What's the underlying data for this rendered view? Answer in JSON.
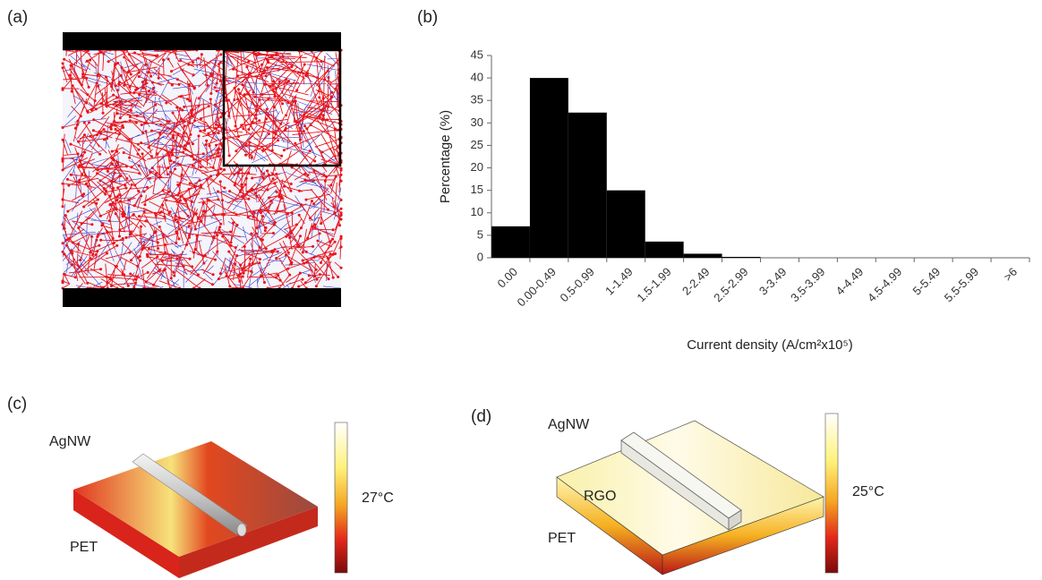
{
  "panels": {
    "a": "(a)",
    "b": "(b)",
    "c": "(c)",
    "d": "(d)"
  },
  "chart_data": {
    "type": "bar",
    "categories": [
      "0.00",
      "0.00-0.49",
      "0.5-0.99",
      "1-1.49",
      "1.5-1.99",
      "2-2.49",
      "2.5-2.99",
      "3-3.49",
      "3.5-3.99",
      "4-4.49",
      "4.5-4.99",
      "5-5.49",
      "5.5-5.99",
      ">6"
    ],
    "values": [
      7,
      40,
      32.3,
      15,
      3.6,
      0.9,
      0.2,
      0,
      0,
      0,
      0,
      0,
      0,
      0
    ],
    "color": "#000000",
    "ylim": [
      0,
      45
    ],
    "yticks": [
      0,
      5,
      10,
      15,
      20,
      25,
      30,
      35,
      40,
      45
    ],
    "y_label": "Percentage (%)",
    "x_label": "Current density (A/cm²x10⁵)"
  },
  "panel_c": {
    "wire": "AgNW",
    "substrate": "PET",
    "temperature": "27°C"
  },
  "panel_d": {
    "wire": "AgNW",
    "coating": "RGO",
    "substrate": "PET",
    "temperature": "25°C"
  }
}
